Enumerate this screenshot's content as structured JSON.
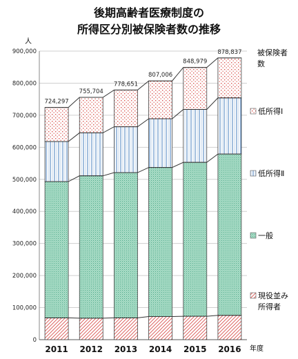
{
  "chart_data": {
    "type": "bar",
    "stacked": true,
    "title_lines": [
      "後期高齢者医療制度の",
      "所得区分別被保険者数の推移"
    ],
    "ylabel": "人",
    "xlabel": "年度",
    "legend_title": [
      "被保険者",
      "数"
    ],
    "legend_placement": "right",
    "grid": true,
    "ylim": [
      0,
      900000
    ],
    "yticks": [
      0,
      100000,
      200000,
      300000,
      400000,
      500000,
      600000,
      700000,
      800000,
      900000
    ],
    "ytick_labels": [
      "0",
      "100,000",
      "200,000",
      "300,000",
      "400,000",
      "500,000",
      "600,000",
      "700,000",
      "800,000",
      "900,000"
    ],
    "categories": [
      "2011",
      "2012",
      "2013",
      "2014",
      "2015",
      "2016"
    ],
    "totals": [
      724297,
      755704,
      778651,
      807006,
      848979,
      878837
    ],
    "total_labels": [
      "724,297",
      "755,704",
      "778,651",
      "807,006",
      "848,979",
      "878,837"
    ],
    "series": [
      {
        "name": "現役並み所得者",
        "legend_lines": [
          "現役並み",
          "所得者"
        ],
        "color": "#d9534f",
        "pattern": "diagonal",
        "values": [
          68000,
          67000,
          68000,
          72000,
          73000,
          76000
        ]
      },
      {
        "name": "一般",
        "legend_lines": [
          "一般"
        ],
        "color": "#a8dcc8",
        "pattern": "dots",
        "values": [
          425000,
          444000,
          453000,
          465000,
          480000,
          503000
        ]
      },
      {
        "name": "低所得Ⅱ",
        "legend_lines": [
          "低所得Ⅱ"
        ],
        "color": "#2e6eb5",
        "pattern": "vertical",
        "values": [
          125000,
          134000,
          143000,
          152000,
          165000,
          175000
        ]
      },
      {
        "name": "低所得Ⅰ",
        "legend_lines": [
          "低所得Ⅰ"
        ],
        "color": "#d9534f",
        "pattern": "checker",
        "values": [
          106297,
          110704,
          114651,
          118006,
          130979,
          124837
        ]
      }
    ]
  }
}
